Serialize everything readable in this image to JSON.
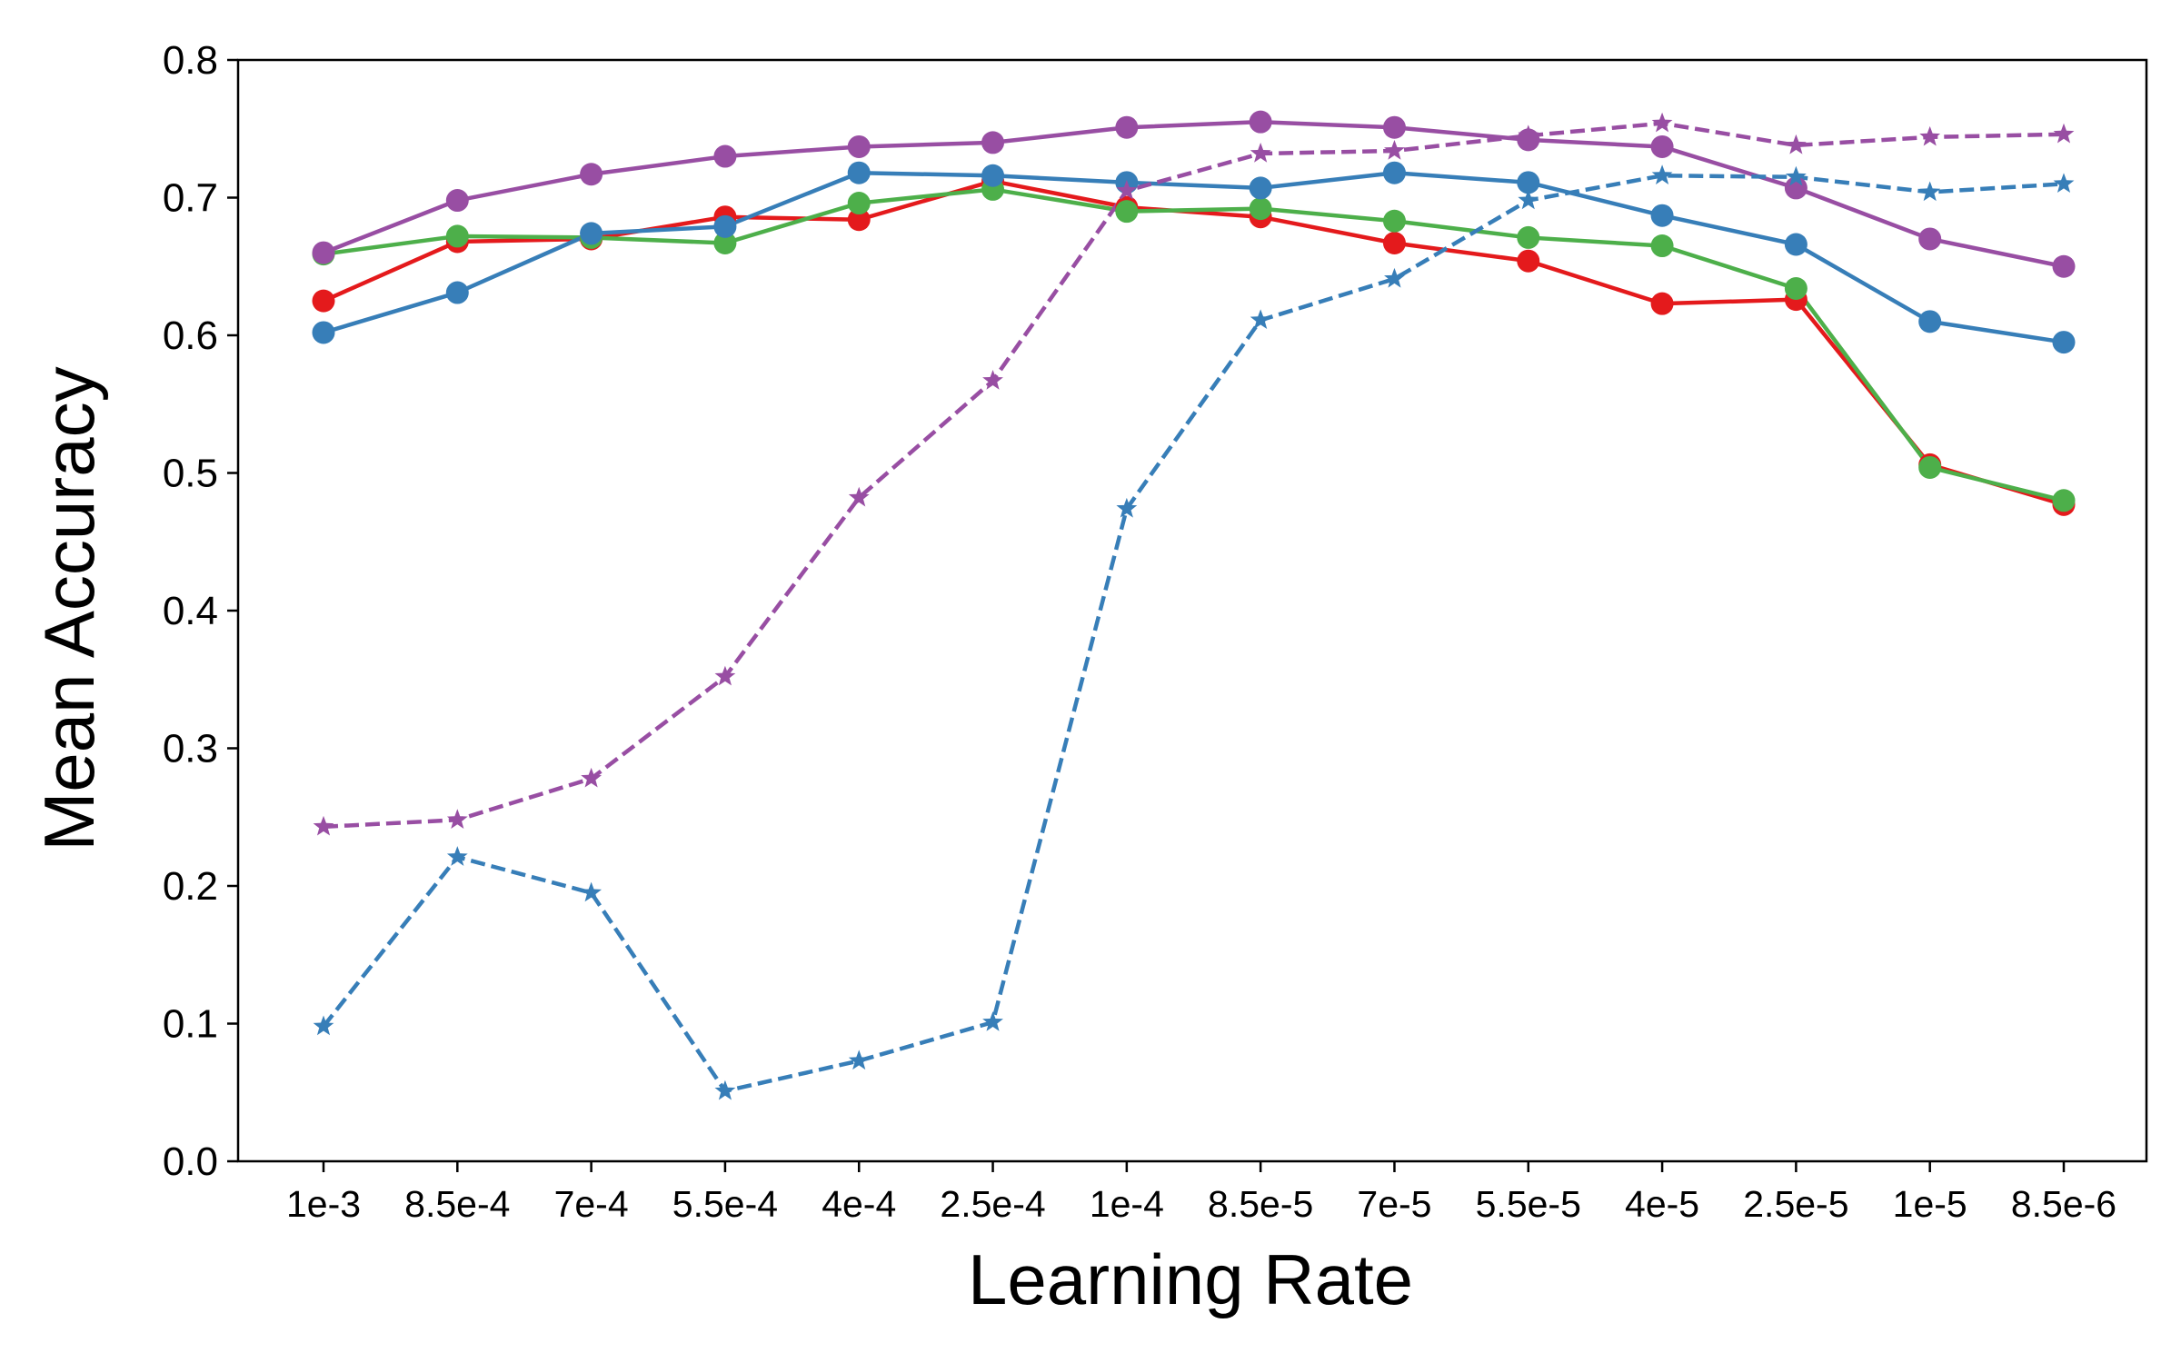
{
  "chart_data": {
    "type": "line",
    "title": "",
    "xlabel": "Learning Rate",
    "ylabel": "Mean Accuracy",
    "ylim": [
      0,
      0.8
    ],
    "yticks": [
      0.0,
      0.1,
      0.2,
      0.3,
      0.4,
      0.5,
      0.6,
      0.7,
      0.8
    ],
    "ytick_labels": [
      "0.0",
      "0.1",
      "0.2",
      "0.3",
      "0.4",
      "0.5",
      "0.6",
      "0.7",
      "0.8"
    ],
    "categories": [
      "1e-3",
      "8.5e-4",
      "7e-4",
      "5.5e-4",
      "4e-4",
      "2.5e-4",
      "1e-4",
      "8.5e-5",
      "7e-5",
      "5.5e-5",
      "4e-5",
      "2.5e-5",
      "1e-5",
      "8.5e-6"
    ],
    "grid": false,
    "legend": "none",
    "series": [
      {
        "name": "red-circle-solid",
        "color": "#e41a1c",
        "marker": "circle",
        "linestyle": "solid",
        "values": [
          0.625,
          0.668,
          0.67,
          0.686,
          0.684,
          0.712,
          0.693,
          0.686,
          0.667,
          0.654,
          0.623,
          0.626,
          0.506,
          0.477
        ]
      },
      {
        "name": "green-circle-solid",
        "color": "#4daf4a",
        "marker": "circle",
        "linestyle": "solid",
        "values": [
          0.659,
          0.672,
          0.671,
          0.667,
          0.696,
          0.706,
          0.69,
          0.692,
          0.683,
          0.671,
          0.665,
          0.634,
          0.504,
          0.48
        ]
      },
      {
        "name": "blue-circle-solid",
        "color": "#377eb8",
        "marker": "circle",
        "linestyle": "solid",
        "values": [
          0.602,
          0.631,
          0.674,
          0.679,
          0.718,
          0.716,
          0.711,
          0.707,
          0.718,
          0.711,
          0.687,
          0.666,
          0.61,
          0.595
        ]
      },
      {
        "name": "purple-circle-solid",
        "color": "#984ea3",
        "marker": "circle",
        "linestyle": "solid",
        "values": [
          0.66,
          0.698,
          0.717,
          0.73,
          0.737,
          0.74,
          0.751,
          0.755,
          0.751,
          0.742,
          0.737,
          0.707,
          0.67,
          0.65
        ]
      },
      {
        "name": "purple-star-dashed",
        "color": "#984ea3",
        "marker": "star",
        "linestyle": "dashed",
        "values": [
          0.243,
          0.248,
          0.278,
          0.352,
          0.482,
          0.567,
          0.705,
          0.732,
          0.734,
          0.745,
          0.754,
          0.738,
          0.744,
          0.746
        ]
      },
      {
        "name": "blue-star-dashed",
        "color": "#377eb8",
        "marker": "star",
        "linestyle": "dashed",
        "values": [
          0.098,
          0.221,
          0.195,
          0.051,
          0.073,
          0.101,
          0.474,
          0.611,
          0.641,
          0.698,
          0.716,
          0.715,
          0.704,
          0.71
        ]
      }
    ]
  }
}
